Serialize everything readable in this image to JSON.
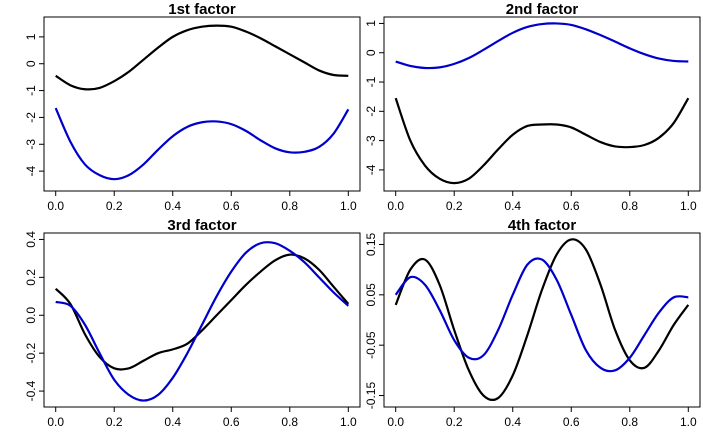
{
  "chart_data": [
    {
      "type": "line",
      "title": "1st factor",
      "xlabel": "",
      "ylabel": "",
      "xlim": [
        0,
        1
      ],
      "ylim": [
        -4.5,
        1.5
      ],
      "xticks": [
        "0.0",
        "0.2",
        "0.4",
        "0.6",
        "0.8",
        "1.0"
      ],
      "yticks": [
        "-4",
        "-3",
        "-2",
        "-1",
        "0",
        "1"
      ],
      "grid": false,
      "series": [
        {
          "color": "#000000",
          "x": [
            0,
            0.05,
            0.1,
            0.15,
            0.2,
            0.25,
            0.3,
            0.35,
            0.4,
            0.45,
            0.5,
            0.55,
            0.6,
            0.65,
            0.7,
            0.75,
            0.8,
            0.85,
            0.9,
            0.95,
            1.0
          ],
          "y": [
            -0.45,
            -0.8,
            -0.95,
            -0.9,
            -0.65,
            -0.3,
            0.15,
            0.6,
            1.0,
            1.25,
            1.38,
            1.42,
            1.38,
            1.2,
            0.95,
            0.65,
            0.35,
            0.05,
            -0.25,
            -0.42,
            -0.45
          ]
        },
        {
          "color": "#0000cc",
          "x": [
            0,
            0.05,
            0.1,
            0.15,
            0.2,
            0.25,
            0.3,
            0.35,
            0.4,
            0.45,
            0.5,
            0.55,
            0.6,
            0.65,
            0.7,
            0.75,
            0.8,
            0.85,
            0.9,
            0.95,
            1.0
          ],
          "y": [
            -1.65,
            -2.9,
            -3.75,
            -4.15,
            -4.3,
            -4.15,
            -3.75,
            -3.2,
            -2.7,
            -2.35,
            -2.18,
            -2.15,
            -2.25,
            -2.5,
            -2.85,
            -3.15,
            -3.3,
            -3.28,
            -3.1,
            -2.6,
            -1.7
          ]
        }
      ]
    },
    {
      "type": "line",
      "title": "2nd factor",
      "xlabel": "",
      "ylabel": "",
      "xlim": [
        0,
        1
      ],
      "ylim": [
        -4.5,
        1.0
      ],
      "xticks": [
        "0.0",
        "0.2",
        "0.4",
        "0.6",
        "0.8",
        "1.0"
      ],
      "yticks": [
        "-4",
        "-3",
        "-2",
        "-1",
        "0",
        "1"
      ],
      "grid": false,
      "series": [
        {
          "color": "#0000cc",
          "x": [
            0,
            0.05,
            0.1,
            0.15,
            0.2,
            0.25,
            0.3,
            0.35,
            0.4,
            0.45,
            0.5,
            0.55,
            0.6,
            0.65,
            0.7,
            0.75,
            0.8,
            0.85,
            0.9,
            0.95,
            1.0
          ],
          "y": [
            -0.3,
            -0.45,
            -0.52,
            -0.5,
            -0.38,
            -0.18,
            0.1,
            0.4,
            0.68,
            0.88,
            0.98,
            1.0,
            0.95,
            0.8,
            0.6,
            0.38,
            0.15,
            -0.05,
            -0.2,
            -0.28,
            -0.3
          ]
        },
        {
          "color": "#000000",
          "x": [
            0,
            0.05,
            0.1,
            0.15,
            0.2,
            0.25,
            0.3,
            0.35,
            0.4,
            0.45,
            0.5,
            0.55,
            0.6,
            0.65,
            0.7,
            0.75,
            0.8,
            0.85,
            0.9,
            0.95,
            1.0
          ],
          "y": [
            -1.55,
            -3.0,
            -3.85,
            -4.3,
            -4.45,
            -4.3,
            -3.85,
            -3.3,
            -2.8,
            -2.5,
            -2.45,
            -2.45,
            -2.55,
            -2.8,
            -3.05,
            -3.2,
            -3.22,
            -3.15,
            -2.9,
            -2.4,
            -1.55
          ]
        }
      ]
    },
    {
      "type": "line",
      "title": "3rd factor",
      "xlabel": "",
      "ylabel": "",
      "xlim": [
        0,
        1
      ],
      "ylim": [
        -0.45,
        0.4
      ],
      "xticks": [
        "0.0",
        "0.2",
        "0.4",
        "0.6",
        "0.8",
        "1.0"
      ],
      "yticks": [
        "-0.4",
        "-0.2",
        "0.0",
        "0.2",
        "0.4"
      ],
      "grid": false,
      "series": [
        {
          "color": "#000000",
          "x": [
            0,
            0.05,
            0.1,
            0.15,
            0.2,
            0.25,
            0.3,
            0.35,
            0.4,
            0.45,
            0.5,
            0.55,
            0.6,
            0.65,
            0.7,
            0.75,
            0.8,
            0.85,
            0.9,
            0.95,
            1.0
          ],
          "y": [
            0.14,
            0.06,
            -0.1,
            -0.22,
            -0.28,
            -0.28,
            -0.24,
            -0.2,
            -0.18,
            -0.15,
            -0.08,
            0.0,
            0.08,
            0.16,
            0.23,
            0.29,
            0.32,
            0.3,
            0.24,
            0.15,
            0.06
          ]
        },
        {
          "color": "#0000cc",
          "x": [
            0,
            0.05,
            0.1,
            0.15,
            0.2,
            0.25,
            0.3,
            0.35,
            0.4,
            0.45,
            0.5,
            0.55,
            0.6,
            0.65,
            0.7,
            0.75,
            0.8,
            0.85,
            0.9,
            0.95,
            1.0
          ],
          "y": [
            0.07,
            0.05,
            -0.05,
            -0.2,
            -0.34,
            -0.42,
            -0.45,
            -0.42,
            -0.33,
            -0.2,
            -0.05,
            0.1,
            0.23,
            0.33,
            0.38,
            0.38,
            0.34,
            0.28,
            0.2,
            0.12,
            0.05
          ]
        }
      ]
    },
    {
      "type": "line",
      "title": "4th factor",
      "xlabel": "",
      "ylabel": "",
      "xlim": [
        0,
        1
      ],
      "ylim": [
        -0.16,
        0.16
      ],
      "xticks": [
        "0.0",
        "0.2",
        "0.4",
        "0.6",
        "0.8",
        "1.0"
      ],
      "yticks": [
        "-0.15",
        "-0.05",
        "0.05",
        "0.15"
      ],
      "grid": false,
      "series": [
        {
          "color": "#000000",
          "x": [
            0,
            0.05,
            0.1,
            0.15,
            0.2,
            0.25,
            0.3,
            0.35,
            0.4,
            0.45,
            0.5,
            0.55,
            0.6,
            0.65,
            0.7,
            0.75,
            0.8,
            0.85,
            0.9,
            0.95,
            1.0
          ],
          "y": [
            0.03,
            0.1,
            0.12,
            0.07,
            -0.02,
            -0.1,
            -0.15,
            -0.155,
            -0.11,
            -0.03,
            0.06,
            0.13,
            0.16,
            0.14,
            0.07,
            -0.02,
            -0.08,
            -0.095,
            -0.06,
            -0.01,
            0.03
          ]
        },
        {
          "color": "#0000cc",
          "x": [
            0,
            0.05,
            0.1,
            0.15,
            0.2,
            0.25,
            0.3,
            0.35,
            0.4,
            0.45,
            0.5,
            0.55,
            0.6,
            0.65,
            0.7,
            0.75,
            0.8,
            0.85,
            0.9,
            0.95,
            1.0
          ],
          "y": [
            0.05,
            0.085,
            0.07,
            0.02,
            -0.04,
            -0.075,
            -0.07,
            -0.02,
            0.05,
            0.11,
            0.12,
            0.08,
            0.01,
            -0.06,
            -0.095,
            -0.1,
            -0.075,
            -0.03,
            0.015,
            0.045,
            0.045
          ]
        }
      ]
    }
  ]
}
